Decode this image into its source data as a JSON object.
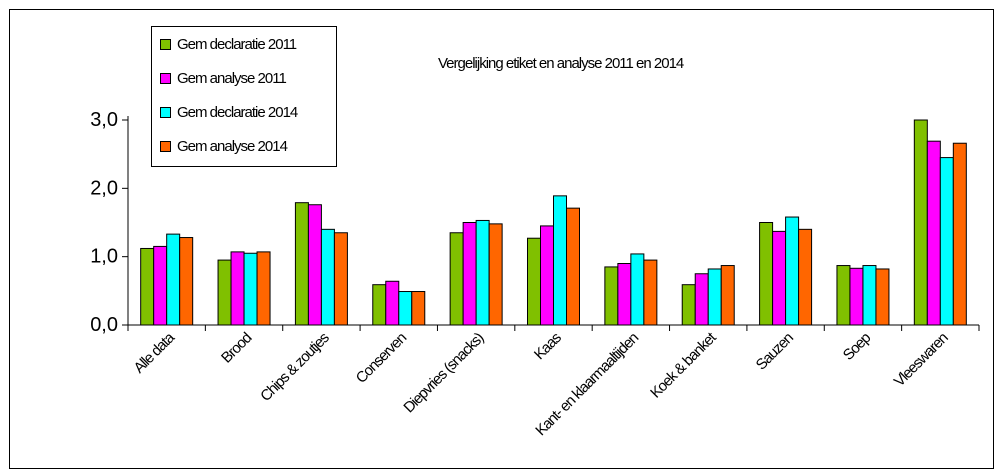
{
  "chart_data": {
    "type": "bar",
    "title": "Vergelijking etiket en analyse 2011 en 2014",
    "categories": [
      "Alle data",
      "Brood",
      "Chips & zoutjes",
      "Conserven",
      "Diepvries (snacks)",
      "Kaas",
      "Kant- en klaarmaaltijden",
      "Koek & banket",
      "Sauzen",
      "Soep",
      "Vleeswaren"
    ],
    "series": [
      {
        "name": "Gem declaratie 2011",
        "color": "#80c000",
        "values": [
          1.12,
          0.95,
          1.79,
          0.59,
          1.35,
          1.27,
          0.85,
          0.59,
          1.5,
          0.87,
          3.0
        ]
      },
      {
        "name": "Gem analyse 2011",
        "color": "#ff00ff",
        "values": [
          1.15,
          1.07,
          1.76,
          0.64,
          1.5,
          1.45,
          0.9,
          0.75,
          1.37,
          0.83,
          2.69
        ]
      },
      {
        "name": "Gem declaratie 2014",
        "color": "#00ffff",
        "values": [
          1.33,
          1.05,
          1.4,
          0.49,
          1.53,
          1.89,
          1.04,
          0.82,
          1.58,
          0.87,
          2.45
        ]
      },
      {
        "name": "Gem analyse 2014",
        "color": "#ff6600",
        "values": [
          1.28,
          1.07,
          1.35,
          0.49,
          1.48,
          1.71,
          0.95,
          0.87,
          1.4,
          0.82,
          2.66
        ]
      }
    ],
    "y_ticks": [
      "0,0",
      "1,0",
      "2,0",
      "3,0"
    ],
    "ylim": [
      0,
      3
    ],
    "xlabel": "",
    "ylabel": "",
    "legend_position": "top-left",
    "grid": false
  }
}
